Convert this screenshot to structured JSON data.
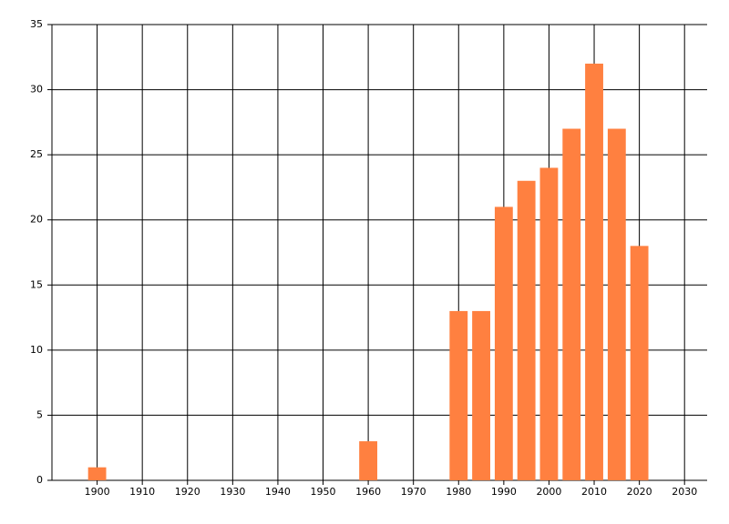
{
  "chart_data": {
    "type": "bar",
    "x": [
      1900,
      1960,
      1980,
      1985,
      1990,
      1995,
      2000,
      2005,
      2010,
      2015,
      2020
    ],
    "values": [
      1,
      3,
      13,
      13,
      21,
      23,
      24,
      27,
      32,
      27,
      18
    ],
    "color": "#ff8040",
    "xlim": [
      1890,
      2035
    ],
    "xticks": [
      1900,
      1910,
      1920,
      1930,
      1940,
      1950,
      1960,
      1970,
      1980,
      1990,
      2000,
      2010,
      2020,
      2030
    ],
    "ylim": [
      0,
      35
    ],
    "yticks": [
      0,
      5,
      10,
      15,
      20,
      25,
      30,
      35
    ],
    "grid": true
  }
}
